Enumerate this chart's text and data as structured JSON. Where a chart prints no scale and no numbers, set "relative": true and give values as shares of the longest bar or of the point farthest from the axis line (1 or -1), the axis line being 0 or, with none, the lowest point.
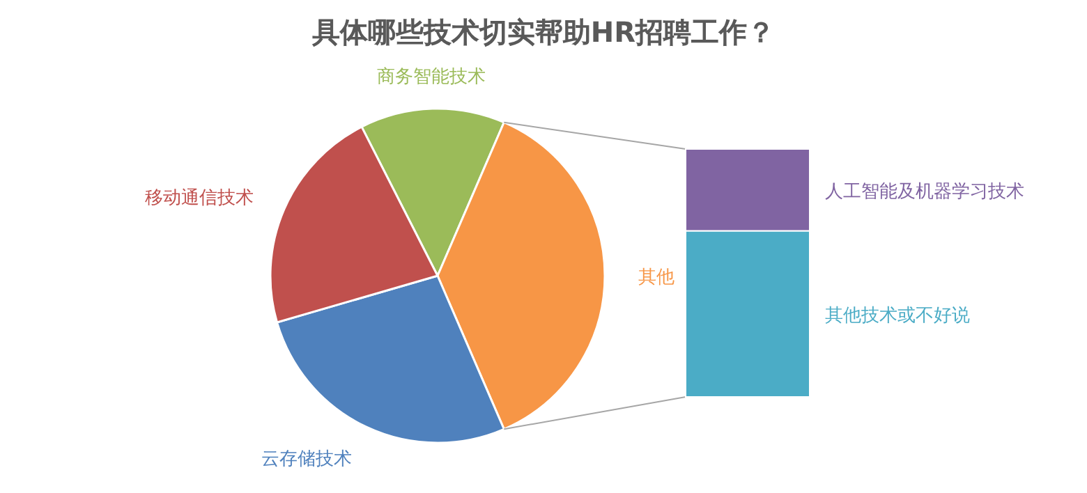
{
  "chart_data": [
    {
      "type": "pie",
      "title": "具体哪些技术切实帮助HR招聘工作？",
      "categories": [
        "商务智能技术",
        "其他",
        "云存储技术",
        "移动通信技术"
      ],
      "values": [
        14,
        37,
        27,
        22
      ],
      "colors": [
        "#9bbb59",
        "#f79646",
        "#4f81bd",
        "#c0504d"
      ]
    },
    {
      "type": "bar",
      "stacked": true,
      "relative": true,
      "categories": [
        null
      ],
      "series": [
        {
          "name": "其他技术或不好说",
          "color": "#4bacc6",
          "values": [
            0.67
          ]
        },
        {
          "name": "人工智能及机器学习技术",
          "color": "#8064a2",
          "values": [
            0.33
          ]
        }
      ]
    }
  ]
}
